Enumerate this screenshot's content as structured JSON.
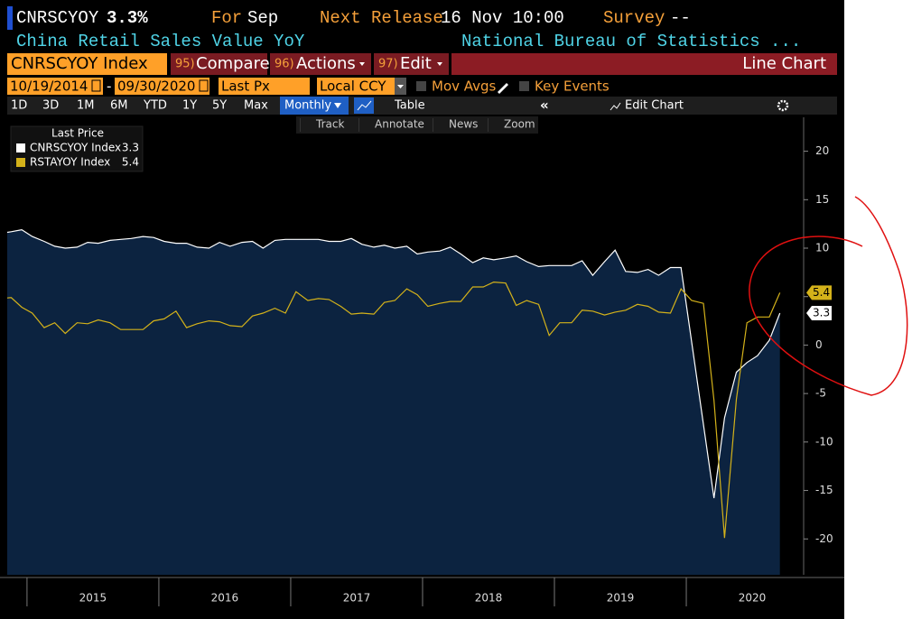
{
  "header": {
    "ticker": "CNRSCYOY",
    "last": "3.3%",
    "period_label": "For",
    "period": "Sep",
    "next_release_label": "Next Release",
    "next_release": "16 Nov 10:00",
    "survey_label": "Survey",
    "survey": "--",
    "description": "China Retail Sales Value YoY",
    "source": "National Bureau of Statistics ..."
  },
  "toolbar": {
    "security": "CNRSCYOY Index",
    "buttons": [
      {
        "key": "95)",
        "label": "Compare"
      },
      {
        "key": "96)",
        "label": "Actions"
      },
      {
        "key": "97)",
        "label": "Edit"
      }
    ],
    "chart_type": "Line Chart",
    "start_date": "10/19/2014",
    "end_date": "09/30/2020",
    "field": "Last Px",
    "currency": "Local CCY",
    "options": [
      "Mov Avgs",
      "Key Events"
    ],
    "periods": [
      "1D",
      "3D",
      "1M",
      "6M",
      "YTD",
      "1Y",
      "5Y",
      "Max"
    ],
    "frequency": "Monthly",
    "table": "Table",
    "edit_chart": "Edit Chart",
    "tools": [
      "Track",
      "Annotate",
      "News",
      "Zoom"
    ]
  },
  "chart_data": {
    "type": "line",
    "legend_title": "Last Price",
    "xlim": [
      2014.85,
      2020.89
    ],
    "xticks": [
      {
        "value": 2015.5,
        "label": "2015"
      },
      {
        "value": 2016.5,
        "label": "2016"
      },
      {
        "value": 2017.5,
        "label": "2017"
      },
      {
        "value": 2018.5,
        "label": "2018"
      },
      {
        "value": 2019.5,
        "label": "2019"
      },
      {
        "value": 2020.5,
        "label": "2020"
      }
    ],
    "ylim": [
      -23.7,
      23.5
    ],
    "yticks": [
      20,
      15,
      10,
      5,
      0,
      -5,
      -10,
      -15,
      -20
    ],
    "series": [
      {
        "name": "CNRSCYOY Index",
        "color": "#ffffff",
        "fill": "#0c2340",
        "x": [
          2014.79,
          2014.88,
          2014.96,
          2015.04,
          2015.13,
          2015.21,
          2015.29,
          2015.38,
          2015.46,
          2015.54,
          2015.63,
          2015.71,
          2015.79,
          2015.88,
          2015.96,
          2016.04,
          2016.13,
          2016.21,
          2016.29,
          2016.38,
          2016.46,
          2016.54,
          2016.63,
          2016.71,
          2016.79,
          2016.88,
          2016.96,
          2017.04,
          2017.13,
          2017.21,
          2017.29,
          2017.38,
          2017.46,
          2017.54,
          2017.63,
          2017.71,
          2017.79,
          2017.88,
          2017.96,
          2018.04,
          2018.13,
          2018.21,
          2018.29,
          2018.38,
          2018.46,
          2018.54,
          2018.63,
          2018.71,
          2018.79,
          2018.88,
          2018.96,
          2019.04,
          2019.13,
          2019.21,
          2019.29,
          2019.38,
          2019.46,
          2019.54,
          2019.63,
          2019.71,
          2019.79,
          2019.88,
          2019.96,
          2020.21,
          2020.29,
          2020.38,
          2020.46,
          2020.54,
          2020.63,
          2020.71
        ],
        "values": [
          11.5,
          11.7,
          11.9,
          11.2,
          10.7,
          10.2,
          10.0,
          10.1,
          10.6,
          10.5,
          10.8,
          10.9,
          11.0,
          11.2,
          11.1,
          10.7,
          10.5,
          10.5,
          10.1,
          10.0,
          10.6,
          10.2,
          10.6,
          10.7,
          10.0,
          10.8,
          10.9,
          10.9,
          10.9,
          10.9,
          10.7,
          10.7,
          11.0,
          10.4,
          10.1,
          10.3,
          10.0,
          10.2,
          9.4,
          9.6,
          9.7,
          10.1,
          9.4,
          8.5,
          9.0,
          8.8,
          9.0,
          9.2,
          8.6,
          8.1,
          8.2,
          8.2,
          8.2,
          8.7,
          7.2,
          8.6,
          9.8,
          7.6,
          7.5,
          7.8,
          7.2,
          8.0,
          8.0,
          -15.8,
          -7.5,
          -2.8,
          -1.8,
          -1.1,
          0.5,
          3.3
        ]
      },
      {
        "name": "RSTAYOY Index",
        "color": "#d4b21a",
        "x": [
          2014.79,
          2014.88,
          2014.96,
          2015.04,
          2015.13,
          2015.21,
          2015.29,
          2015.38,
          2015.46,
          2015.54,
          2015.63,
          2015.71,
          2015.79,
          2015.88,
          2015.96,
          2016.04,
          2016.13,
          2016.21,
          2016.29,
          2016.38,
          2016.46,
          2016.54,
          2016.63,
          2016.71,
          2016.79,
          2016.88,
          2016.96,
          2017.04,
          2017.13,
          2017.21,
          2017.29,
          2017.38,
          2017.46,
          2017.54,
          2017.63,
          2017.71,
          2017.79,
          2017.88,
          2017.96,
          2018.04,
          2018.13,
          2018.21,
          2018.29,
          2018.38,
          2018.46,
          2018.54,
          2018.63,
          2018.71,
          2018.79,
          2018.88,
          2018.96,
          2019.04,
          2019.13,
          2019.21,
          2019.29,
          2019.38,
          2019.46,
          2019.54,
          2019.63,
          2019.71,
          2019.79,
          2019.88,
          2019.96,
          2020.04,
          2020.13,
          2020.21,
          2020.29,
          2020.38,
          2020.46,
          2020.54,
          2020.63,
          2020.71
        ],
        "values": [
          4.8,
          4.9,
          3.9,
          3.3,
          1.8,
          2.3,
          1.2,
          2.3,
          2.2,
          2.6,
          2.3,
          1.6,
          1.6,
          1.6,
          2.5,
          2.7,
          3.5,
          1.8,
          2.2,
          2.5,
          2.4,
          2.0,
          1.9,
          3.0,
          3.3,
          3.8,
          3.3,
          5.5,
          4.6,
          4.8,
          4.7,
          4.0,
          3.2,
          3.3,
          3.2,
          4.4,
          4.6,
          5.8,
          5.2,
          4.0,
          4.3,
          4.5,
          4.5,
          6.0,
          6.0,
          6.5,
          6.4,
          4.1,
          4.6,
          4.2,
          1.0,
          2.3,
          2.3,
          3.6,
          3.5,
          3.1,
          3.4,
          3.6,
          4.2,
          4.0,
          3.4,
          3.3,
          5.8,
          4.6,
          4.3,
          -5.7,
          -19.9,
          -5.6,
          2.3,
          2.9,
          2.9,
          5.4
        ]
      }
    ]
  }
}
